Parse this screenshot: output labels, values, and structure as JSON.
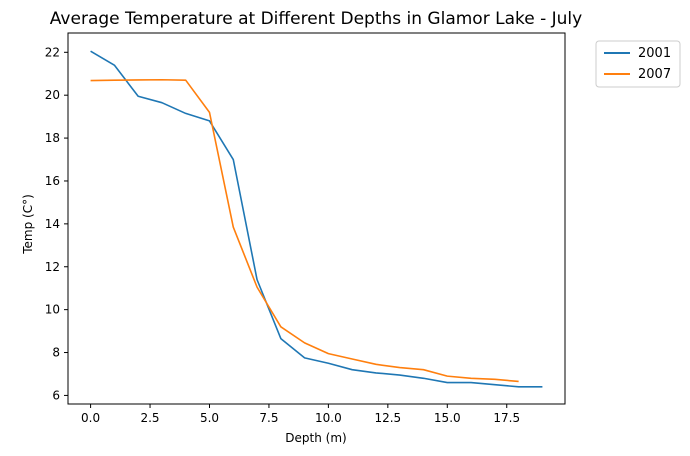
{
  "chart_data": {
    "type": "line",
    "title": "Average Temperature at Different Depths in Glamor Lake - July",
    "xlabel": "Depth (m)",
    "ylabel": "Temp (C°)",
    "xlim": [
      -0.95,
      19.95
    ],
    "ylim": [
      5.6,
      22.9
    ],
    "x_ticks": [
      0,
      2.5,
      5,
      7.5,
      10,
      12.5,
      15,
      17.5
    ],
    "x_tick_labels": [
      "0.0",
      "2.5",
      "5.0",
      "7.5",
      "10.0",
      "12.5",
      "15.0",
      "17.5"
    ],
    "y_ticks": [
      6,
      8,
      10,
      12,
      14,
      16,
      18,
      20,
      22
    ],
    "y_tick_labels": [
      "6",
      "8",
      "10",
      "12",
      "14",
      "16",
      "18",
      "20",
      "22"
    ],
    "grid": false,
    "legend_position": "outside-top-right",
    "series": [
      {
        "name": "2001",
        "color": "#1f77b4",
        "x": [
          0,
          1,
          2,
          3,
          4,
          5,
          6,
          7,
          8,
          9,
          10,
          11,
          12,
          13,
          14,
          15,
          16,
          17,
          18,
          19
        ],
        "y": [
          22.05,
          21.4,
          19.95,
          19.65,
          19.15,
          18.8,
          17.0,
          11.4,
          8.65,
          7.75,
          7.5,
          7.2,
          7.05,
          6.95,
          6.8,
          6.6,
          6.6,
          6.5,
          6.4,
          6.4
        ]
      },
      {
        "name": "2007",
        "color": "#ff7f0e",
        "x": [
          0,
          1,
          2,
          3,
          4,
          5,
          6,
          7,
          8,
          9,
          10,
          11,
          12,
          13,
          14,
          15,
          16,
          17,
          18
        ],
        "y": [
          20.68,
          20.7,
          20.71,
          20.72,
          20.7,
          19.2,
          13.85,
          11.05,
          9.2,
          8.45,
          7.95,
          7.7,
          7.45,
          7.3,
          7.2,
          6.9,
          6.8,
          6.75,
          6.65
        ]
      }
    ]
  }
}
